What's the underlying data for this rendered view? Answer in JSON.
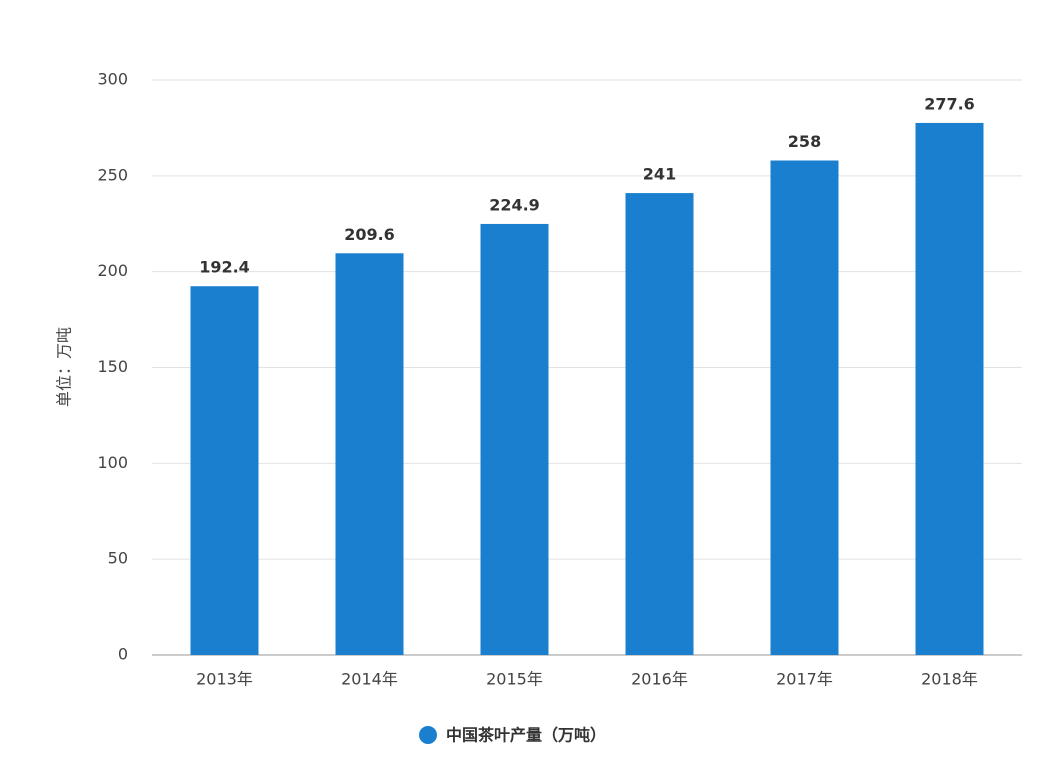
{
  "chart_data": {
    "type": "bar",
    "y_label": "单位：万吨",
    "categories": [
      "2013年",
      "2014年",
      "2015年",
      "2016年",
      "2017年",
      "2018年"
    ],
    "series": [
      {
        "name": "中国茶叶产量（万吨）",
        "color": "#1a7fcf",
        "values": [
          192.4,
          209.6,
          224.9,
          241,
          258,
          277.6
        ]
      }
    ],
    "ylim": [
      0,
      300
    ],
    "yticks": [
      0,
      50,
      100,
      150,
      200,
      250,
      300
    ],
    "grid": true
  }
}
